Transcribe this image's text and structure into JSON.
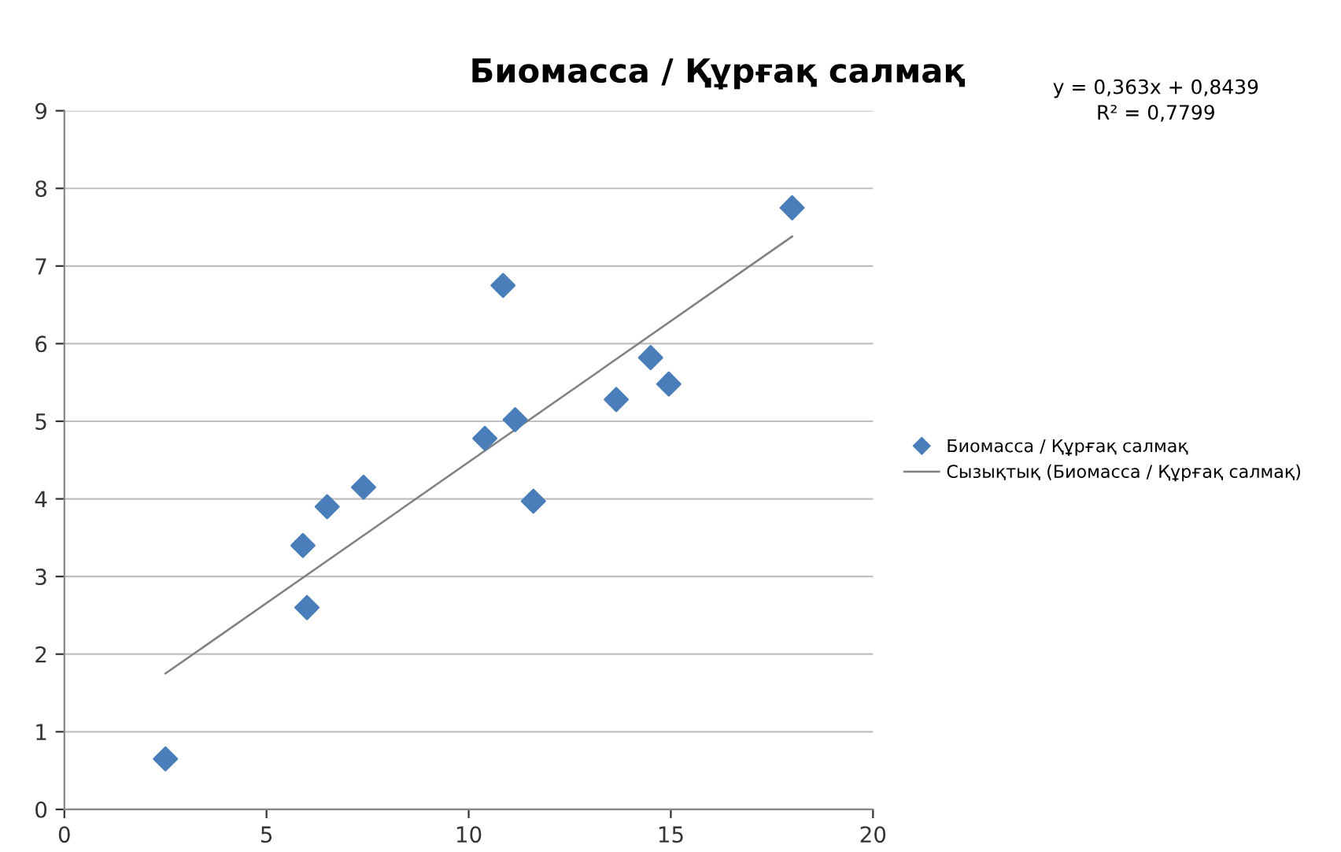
{
  "chart_data": {
    "type": "scatter",
    "title": "Биомасса / Құрғақ салмақ",
    "annotations": [
      "y = 0,363x + 0,8439",
      "R² = 0,7799"
    ],
    "series": [
      {
        "name": "Биомасса / Құрғақ салмақ",
        "color": "#4a7ebb",
        "marker": "diamond",
        "x": [
          2.5,
          5.9,
          6.0,
          6.5,
          7.4,
          10.4,
          10.85,
          11.15,
          11.6,
          13.65,
          14.5,
          14.95,
          18.0
        ],
        "values": [
          0.65,
          3.4,
          2.6,
          3.9,
          4.15,
          4.78,
          6.75,
          5.02,
          3.97,
          5.28,
          5.82,
          5.48,
          7.75
        ]
      },
      {
        "name": "Сызықтық (Биомасса / Құрғақ салмақ)",
        "type": "line",
        "color": "#808080",
        "marker": "none",
        "line_style": "solid",
        "x": [
          2.5,
          18.0
        ],
        "values": [
          1.75,
          7.38
        ]
      }
    ],
    "xlim": [
      0,
      20
    ],
    "xticks": [
      0,
      5,
      10,
      15,
      20
    ],
    "ylim": [
      0,
      9
    ],
    "yticks": [
      0,
      1,
      2,
      3,
      4,
      5,
      6,
      7,
      8,
      9
    ],
    "grid": "y",
    "legend": "right"
  }
}
